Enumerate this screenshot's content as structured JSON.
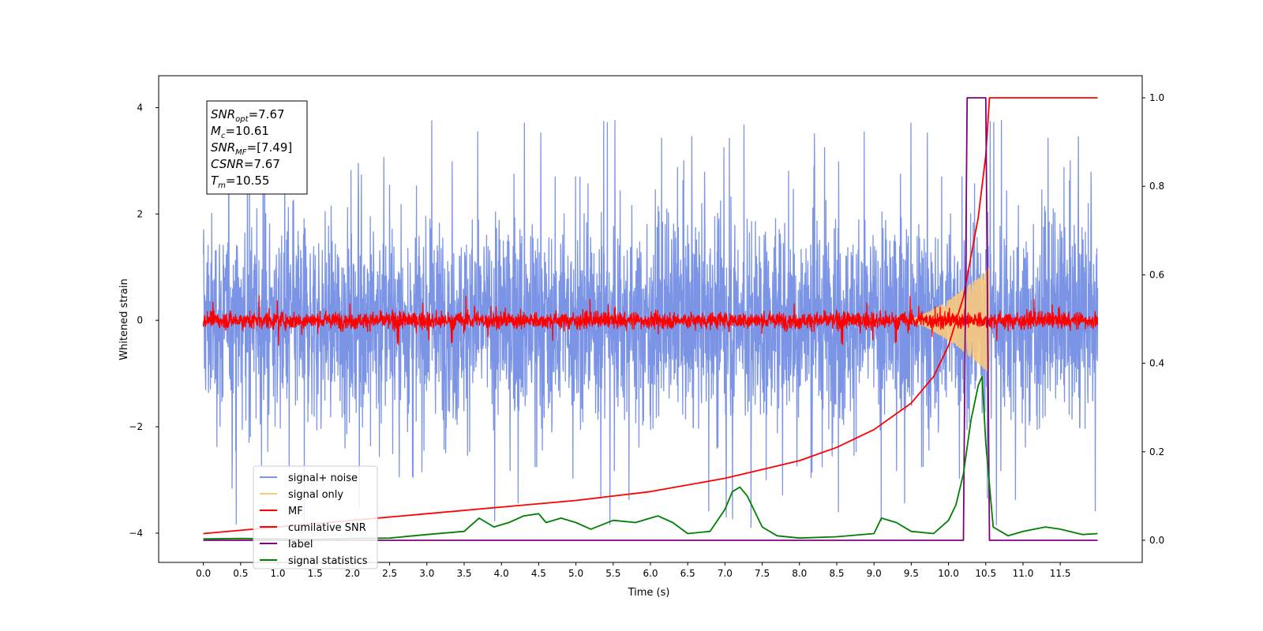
{
  "chart_data": {
    "type": "line",
    "title": "",
    "xlabel": "Time (s)",
    "ylabel": "Whitened strain",
    "xlim": [
      -0.6,
      12.6
    ],
    "ylim": [
      -4.55,
      4.6
    ],
    "ylim_right": [
      -0.05,
      1.05
    ],
    "x_ticks": [
      "0.0",
      "0.5",
      "1.0",
      "1.5",
      "2.0",
      "2.5",
      "3.0",
      "3.5",
      "4.0",
      "4.5",
      "5.0",
      "5.5",
      "6.0",
      "6.5",
      "7.0",
      "7.5",
      "8.0",
      "8.5",
      "9.0",
      "9.5",
      "10.0",
      "10.5",
      "11.0",
      "11.5"
    ],
    "y_ticks_left": [
      "4",
      "2",
      "0",
      "−2",
      "−4"
    ],
    "y_ticks_right": [
      "1.0",
      "0.8",
      "0.6",
      "0.4",
      "0.2",
      "0.0"
    ],
    "grid": false,
    "legend_position": "lower-left",
    "series": [
      {
        "name": "signal+ noise",
        "axis": "left",
        "color": "#7b94e6",
        "kind": "noise",
        "x_range": [
          0.0,
          12.0
        ],
        "envelope_typical": 2.4,
        "envelope_peak": 4.0
      },
      {
        "name": "signal only",
        "axis": "left",
        "color": "#f9c97c",
        "kind": "chirp",
        "x_range": [
          9.4,
          10.55
        ],
        "amplitude_peak": 1.0
      },
      {
        "name": "MF",
        "axis": "left",
        "color": "#ff0000",
        "kind": "noise",
        "x_range": [
          0.0,
          12.0
        ],
        "envelope_typical": 0.2,
        "envelope_peak": 0.5
      },
      {
        "name": "cumilative SNR",
        "axis": "right",
        "color": "#ff0000",
        "x": [
          0.0,
          1.0,
          2.0,
          3.0,
          4.0,
          5.0,
          6.0,
          7.0,
          7.5,
          8.0,
          8.5,
          9.0,
          9.5,
          9.8,
          10.0,
          10.2,
          10.4,
          10.5,
          10.55,
          10.56,
          12.0
        ],
        "values": [
          0.015,
          0.03,
          0.045,
          0.06,
          0.075,
          0.09,
          0.11,
          0.14,
          0.16,
          0.18,
          0.21,
          0.25,
          0.31,
          0.37,
          0.44,
          0.55,
          0.73,
          0.87,
          1.0,
          1.0,
          1.0
        ]
      },
      {
        "name": "label",
        "axis": "right",
        "color": "#800080",
        "x": [
          0.0,
          10.2,
          10.25,
          10.5,
          10.55,
          12.0
        ],
        "values": [
          0.0,
          0.0,
          1.0,
          1.0,
          0.0,
          0.0
        ]
      },
      {
        "name": "signal statistics",
        "axis": "right",
        "color": "#008000",
        "x": [
          0.0,
          0.5,
          1.0,
          1.5,
          2.0,
          2.5,
          3.0,
          3.5,
          3.7,
          3.9,
          4.1,
          4.3,
          4.5,
          4.6,
          4.8,
          5.0,
          5.2,
          5.5,
          5.8,
          6.0,
          6.1,
          6.3,
          6.5,
          6.8,
          7.0,
          7.1,
          7.2,
          7.3,
          7.5,
          7.7,
          8.0,
          8.5,
          9.0,
          9.1,
          9.3,
          9.5,
          9.8,
          10.0,
          10.1,
          10.2,
          10.3,
          10.4,
          10.45,
          10.5,
          10.6,
          10.8,
          11.0,
          11.3,
          11.5,
          11.8,
          12.0
        ],
        "values": [
          0.003,
          0.004,
          0.003,
          0.002,
          0.004,
          0.005,
          0.013,
          0.02,
          0.05,
          0.03,
          0.04,
          0.055,
          0.06,
          0.04,
          0.05,
          0.04,
          0.025,
          0.045,
          0.04,
          0.05,
          0.055,
          0.04,
          0.015,
          0.02,
          0.07,
          0.11,
          0.12,
          0.1,
          0.03,
          0.01,
          0.005,
          0.008,
          0.015,
          0.05,
          0.04,
          0.02,
          0.015,
          0.045,
          0.08,
          0.15,
          0.27,
          0.35,
          0.37,
          0.22,
          0.03,
          0.01,
          0.02,
          0.03,
          0.025,
          0.013,
          0.015
        ]
      }
    ],
    "annotations": [
      {
        "main": "SNR",
        "sub": "opt",
        "value": "=7.67"
      },
      {
        "main": "M",
        "sub": "c",
        "value": "=10.61"
      },
      {
        "main": "SNR",
        "sub": "MF",
        "value": "=[7.49]"
      },
      {
        "main": "CSNR",
        "sub": "",
        "value": "=7.67"
      },
      {
        "main": "T",
        "sub": "m",
        "value": "=10.55"
      }
    ]
  }
}
